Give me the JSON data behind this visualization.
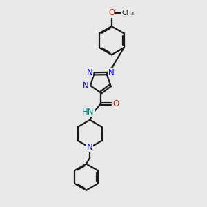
{
  "bg_color": "#e8e8e8",
  "black": "#1a1a1a",
  "blue": "#0000ee",
  "red": "#cc2200",
  "teal": "#008080",
  "line_width": 1.6,
  "dbo": 0.055,
  "font_size": 8.5,
  "fig_w": 3.0,
  "fig_h": 3.0,
  "dpi": 100,
  "xlim": [
    0,
    10
  ],
  "ylim": [
    0,
    10
  ]
}
